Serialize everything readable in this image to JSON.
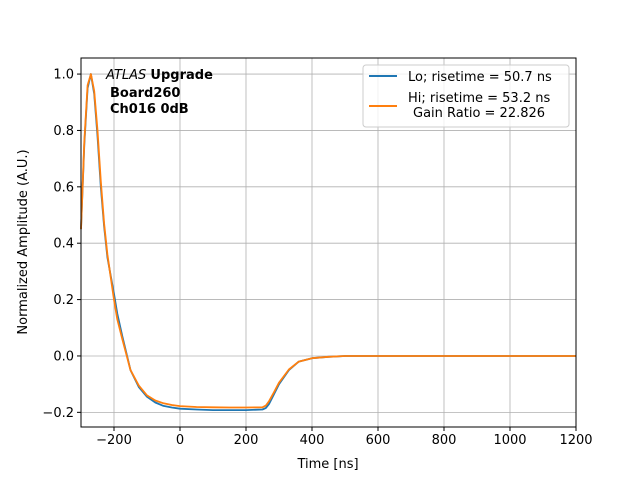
{
  "chart_data": {
    "type": "line",
    "title": "",
    "xlabel": "Time [ns]",
    "ylabel": "Normalized Amplitude (A.U.)",
    "xlim": [
      -300,
      1200
    ],
    "ylim": [
      -0.252,
      1.057
    ],
    "xticks": [
      -200,
      0,
      200,
      400,
      600,
      800,
      1000,
      1200
    ],
    "xtick_labels": [
      "−200",
      "0",
      "200",
      "400",
      "600",
      "800",
      "1000",
      "1200"
    ],
    "yticks": [
      -0.2,
      0.0,
      0.2,
      0.4,
      0.6,
      0.8,
      1.0
    ],
    "ytick_labels": [
      "−0.2",
      "0.0",
      "0.2",
      "0.4",
      "0.6",
      "0.8",
      "1.0"
    ],
    "grid": true,
    "legend_position": "top-right",
    "annotation": {
      "italic": "ATLAS",
      "bold": "Upgrade",
      "line2": "Board260",
      "line3": "Ch016 0dB"
    },
    "series": [
      {
        "name": "Lo; risetime = 50.7 ns",
        "color": "#1f77b4",
        "x": [
          -300,
          -290,
          -280,
          -270,
          -260,
          -250,
          -240,
          -230,
          -220,
          -200,
          -190,
          -175,
          -150,
          -125,
          -100,
          -75,
          -50,
          -25,
          0,
          50,
          100,
          150,
          200,
          250,
          260,
          270,
          285,
          300,
          330,
          360,
          400,
          450,
          500,
          600,
          800,
          1000,
          1200
        ],
        "y": [
          0.45,
          0.75,
          0.95,
          1.0,
          0.93,
          0.78,
          0.6,
          0.46,
          0.35,
          0.22,
          0.15,
          0.07,
          -0.05,
          -0.11,
          -0.145,
          -0.165,
          -0.177,
          -0.183,
          -0.187,
          -0.19,
          -0.192,
          -0.192,
          -0.192,
          -0.19,
          -0.185,
          -0.17,
          -0.135,
          -0.1,
          -0.05,
          -0.02,
          -0.008,
          -0.003,
          0,
          0,
          0,
          0,
          0
        ]
      },
      {
        "name": "Hi; risetime = 53.2 ns",
        "name_line2": "Gain Ratio = 22.826",
        "color": "#ff7f0e",
        "x": [
          -300,
          -290,
          -280,
          -270,
          -260,
          -250,
          -240,
          -230,
          -220,
          -200,
          -190,
          -175,
          -150,
          -125,
          -100,
          -75,
          -50,
          -25,
          0,
          50,
          100,
          150,
          200,
          250,
          260,
          270,
          285,
          300,
          330,
          360,
          400,
          450,
          500,
          600,
          800,
          1000,
          1200
        ],
        "y": [
          0.45,
          0.76,
          0.96,
          1.0,
          0.94,
          0.8,
          0.62,
          0.47,
          0.36,
          0.2,
          0.13,
          0.06,
          -0.05,
          -0.105,
          -0.14,
          -0.158,
          -0.168,
          -0.174,
          -0.178,
          -0.181,
          -0.182,
          -0.183,
          -0.183,
          -0.182,
          -0.176,
          -0.16,
          -0.128,
          -0.095,
          -0.048,
          -0.02,
          -0.008,
          -0.003,
          0,
          0,
          0,
          0,
          0
        ]
      }
    ]
  }
}
